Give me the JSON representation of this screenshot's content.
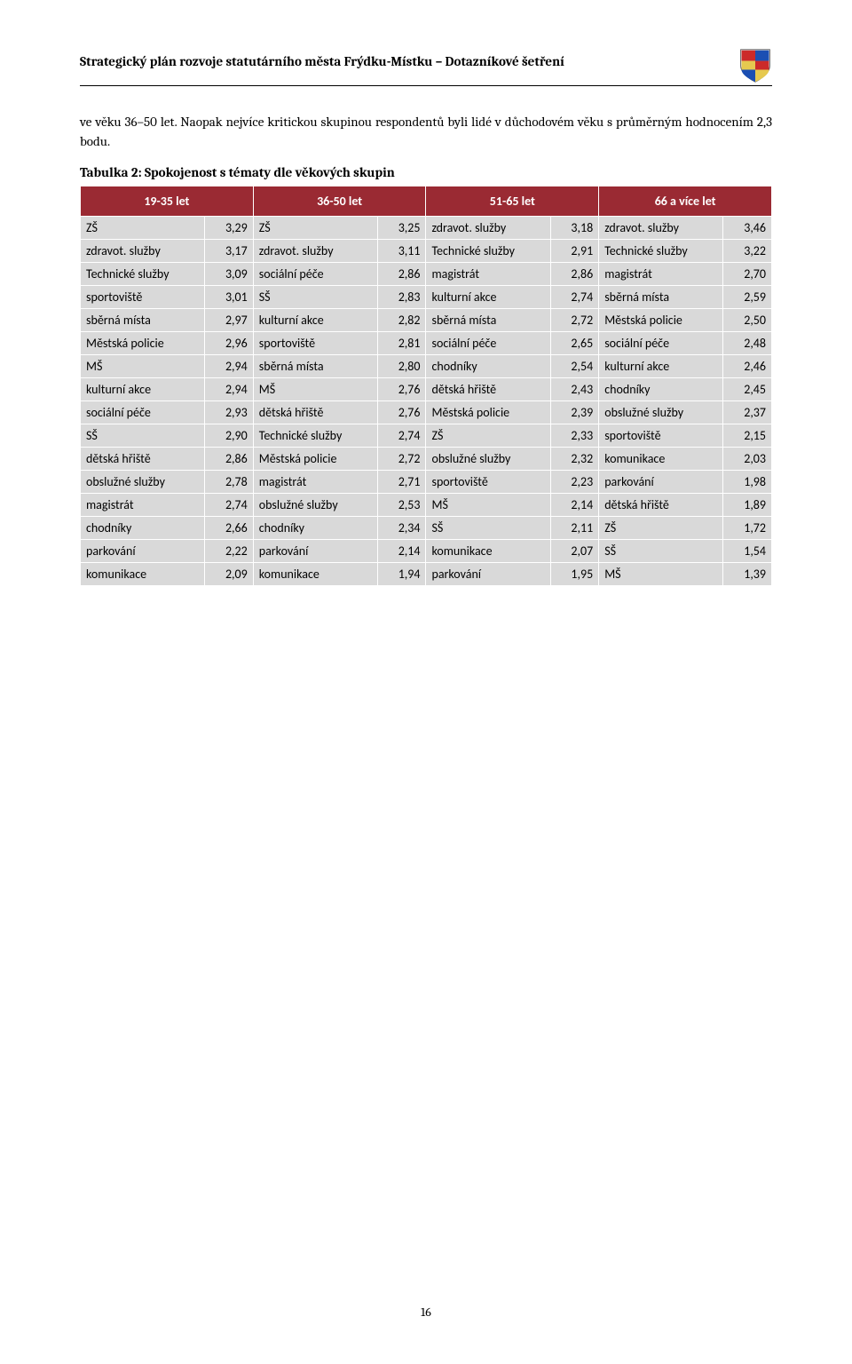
{
  "header": {
    "title": "Strategický plán rozvoje statutárního města  Frýdku-Místku – Dotazníkové šetření"
  },
  "body": {
    "paragraph": "ve věku 36–50 let. Naopak nejvíce kritickou skupinou respondentů byli lidé v důchodovém věku s průměrným hodnocením 2,3 bodu.",
    "table_title": "Tabulka 2: Spokojenost s tématy dle věkových skupin"
  },
  "table": {
    "header_bg": "#9a2a33",
    "header_fg": "#ffffff",
    "cell_bg": "#d9d9d9",
    "border_color": "#ffffff",
    "columns": [
      "19-35 let",
      "36-50 let",
      "51-65 let",
      "66 a více let"
    ],
    "rows": [
      [
        [
          "ZŠ",
          "3,29"
        ],
        [
          "ZŠ",
          "3,25"
        ],
        [
          "zdravot. služby",
          "3,18"
        ],
        [
          "zdravot. služby",
          "3,46"
        ]
      ],
      [
        [
          "zdravot. služby",
          "3,17"
        ],
        [
          "zdravot. služby",
          "3,11"
        ],
        [
          "Technické služby",
          "2,91"
        ],
        [
          "Technické služby",
          "3,22"
        ]
      ],
      [
        [
          "Technické služby",
          "3,09"
        ],
        [
          "sociální péče",
          "2,86"
        ],
        [
          "magistrát",
          "2,86"
        ],
        [
          "magistrát",
          "2,70"
        ]
      ],
      [
        [
          "sportoviště",
          "3,01"
        ],
        [
          "SŠ",
          "2,83"
        ],
        [
          "kulturní akce",
          "2,74"
        ],
        [
          "sběrná místa",
          "2,59"
        ]
      ],
      [
        [
          "sběrná místa",
          "2,97"
        ],
        [
          "kulturní akce",
          "2,82"
        ],
        [
          "sběrná místa",
          "2,72"
        ],
        [
          "Městská policie",
          "2,50"
        ]
      ],
      [
        [
          "Městská policie",
          "2,96"
        ],
        [
          "sportoviště",
          "2,81"
        ],
        [
          "sociální péče",
          "2,65"
        ],
        [
          "sociální péče",
          "2,48"
        ]
      ],
      [
        [
          "MŠ",
          "2,94"
        ],
        [
          "sběrná místa",
          "2,80"
        ],
        [
          "chodníky",
          "2,54"
        ],
        [
          "kulturní akce",
          "2,46"
        ]
      ],
      [
        [
          "kulturní akce",
          "2,94"
        ],
        [
          "MŠ",
          "2,76"
        ],
        [
          "dětská hřiště",
          "2,43"
        ],
        [
          "chodníky",
          "2,45"
        ]
      ],
      [
        [
          "sociální péče",
          "2,93"
        ],
        [
          "dětská hřiště",
          "2,76"
        ],
        [
          "Městská policie",
          "2,39"
        ],
        [
          "obslužné služby",
          "2,37"
        ]
      ],
      [
        [
          "SŠ",
          "2,90"
        ],
        [
          "Technické služby",
          "2,74"
        ],
        [
          "ZŠ",
          "2,33"
        ],
        [
          "sportoviště",
          "2,15"
        ]
      ],
      [
        [
          "dětská hřiště",
          "2,86"
        ],
        [
          "Městská policie",
          "2,72"
        ],
        [
          "obslužné služby",
          "2,32"
        ],
        [
          "komunikace",
          "2,03"
        ]
      ],
      [
        [
          "obslužné služby",
          "2,78"
        ],
        [
          "magistrát",
          "2,71"
        ],
        [
          "sportoviště",
          "2,23"
        ],
        [
          "parkování",
          "1,98"
        ]
      ],
      [
        [
          "magistrát",
          "2,74"
        ],
        [
          "obslužné služby",
          "2,53"
        ],
        [
          "MŠ",
          "2,14"
        ],
        [
          "dětská hřiště",
          "1,89"
        ]
      ],
      [
        [
          "chodníky",
          "2,66"
        ],
        [
          "chodníky",
          "2,34"
        ],
        [
          "SŠ",
          "2,11"
        ],
        [
          "ZŠ",
          "1,72"
        ]
      ],
      [
        [
          "parkování",
          "2,22"
        ],
        [
          "parkování",
          "2,14"
        ],
        [
          "komunikace",
          "2,07"
        ],
        [
          "SŠ",
          "1,54"
        ]
      ],
      [
        [
          "komunikace",
          "2,09"
        ],
        [
          "komunikace",
          "1,94"
        ],
        [
          "parkování",
          "1,95"
        ],
        [
          "MŠ",
          "1,39"
        ]
      ]
    ]
  },
  "page_number": "16"
}
